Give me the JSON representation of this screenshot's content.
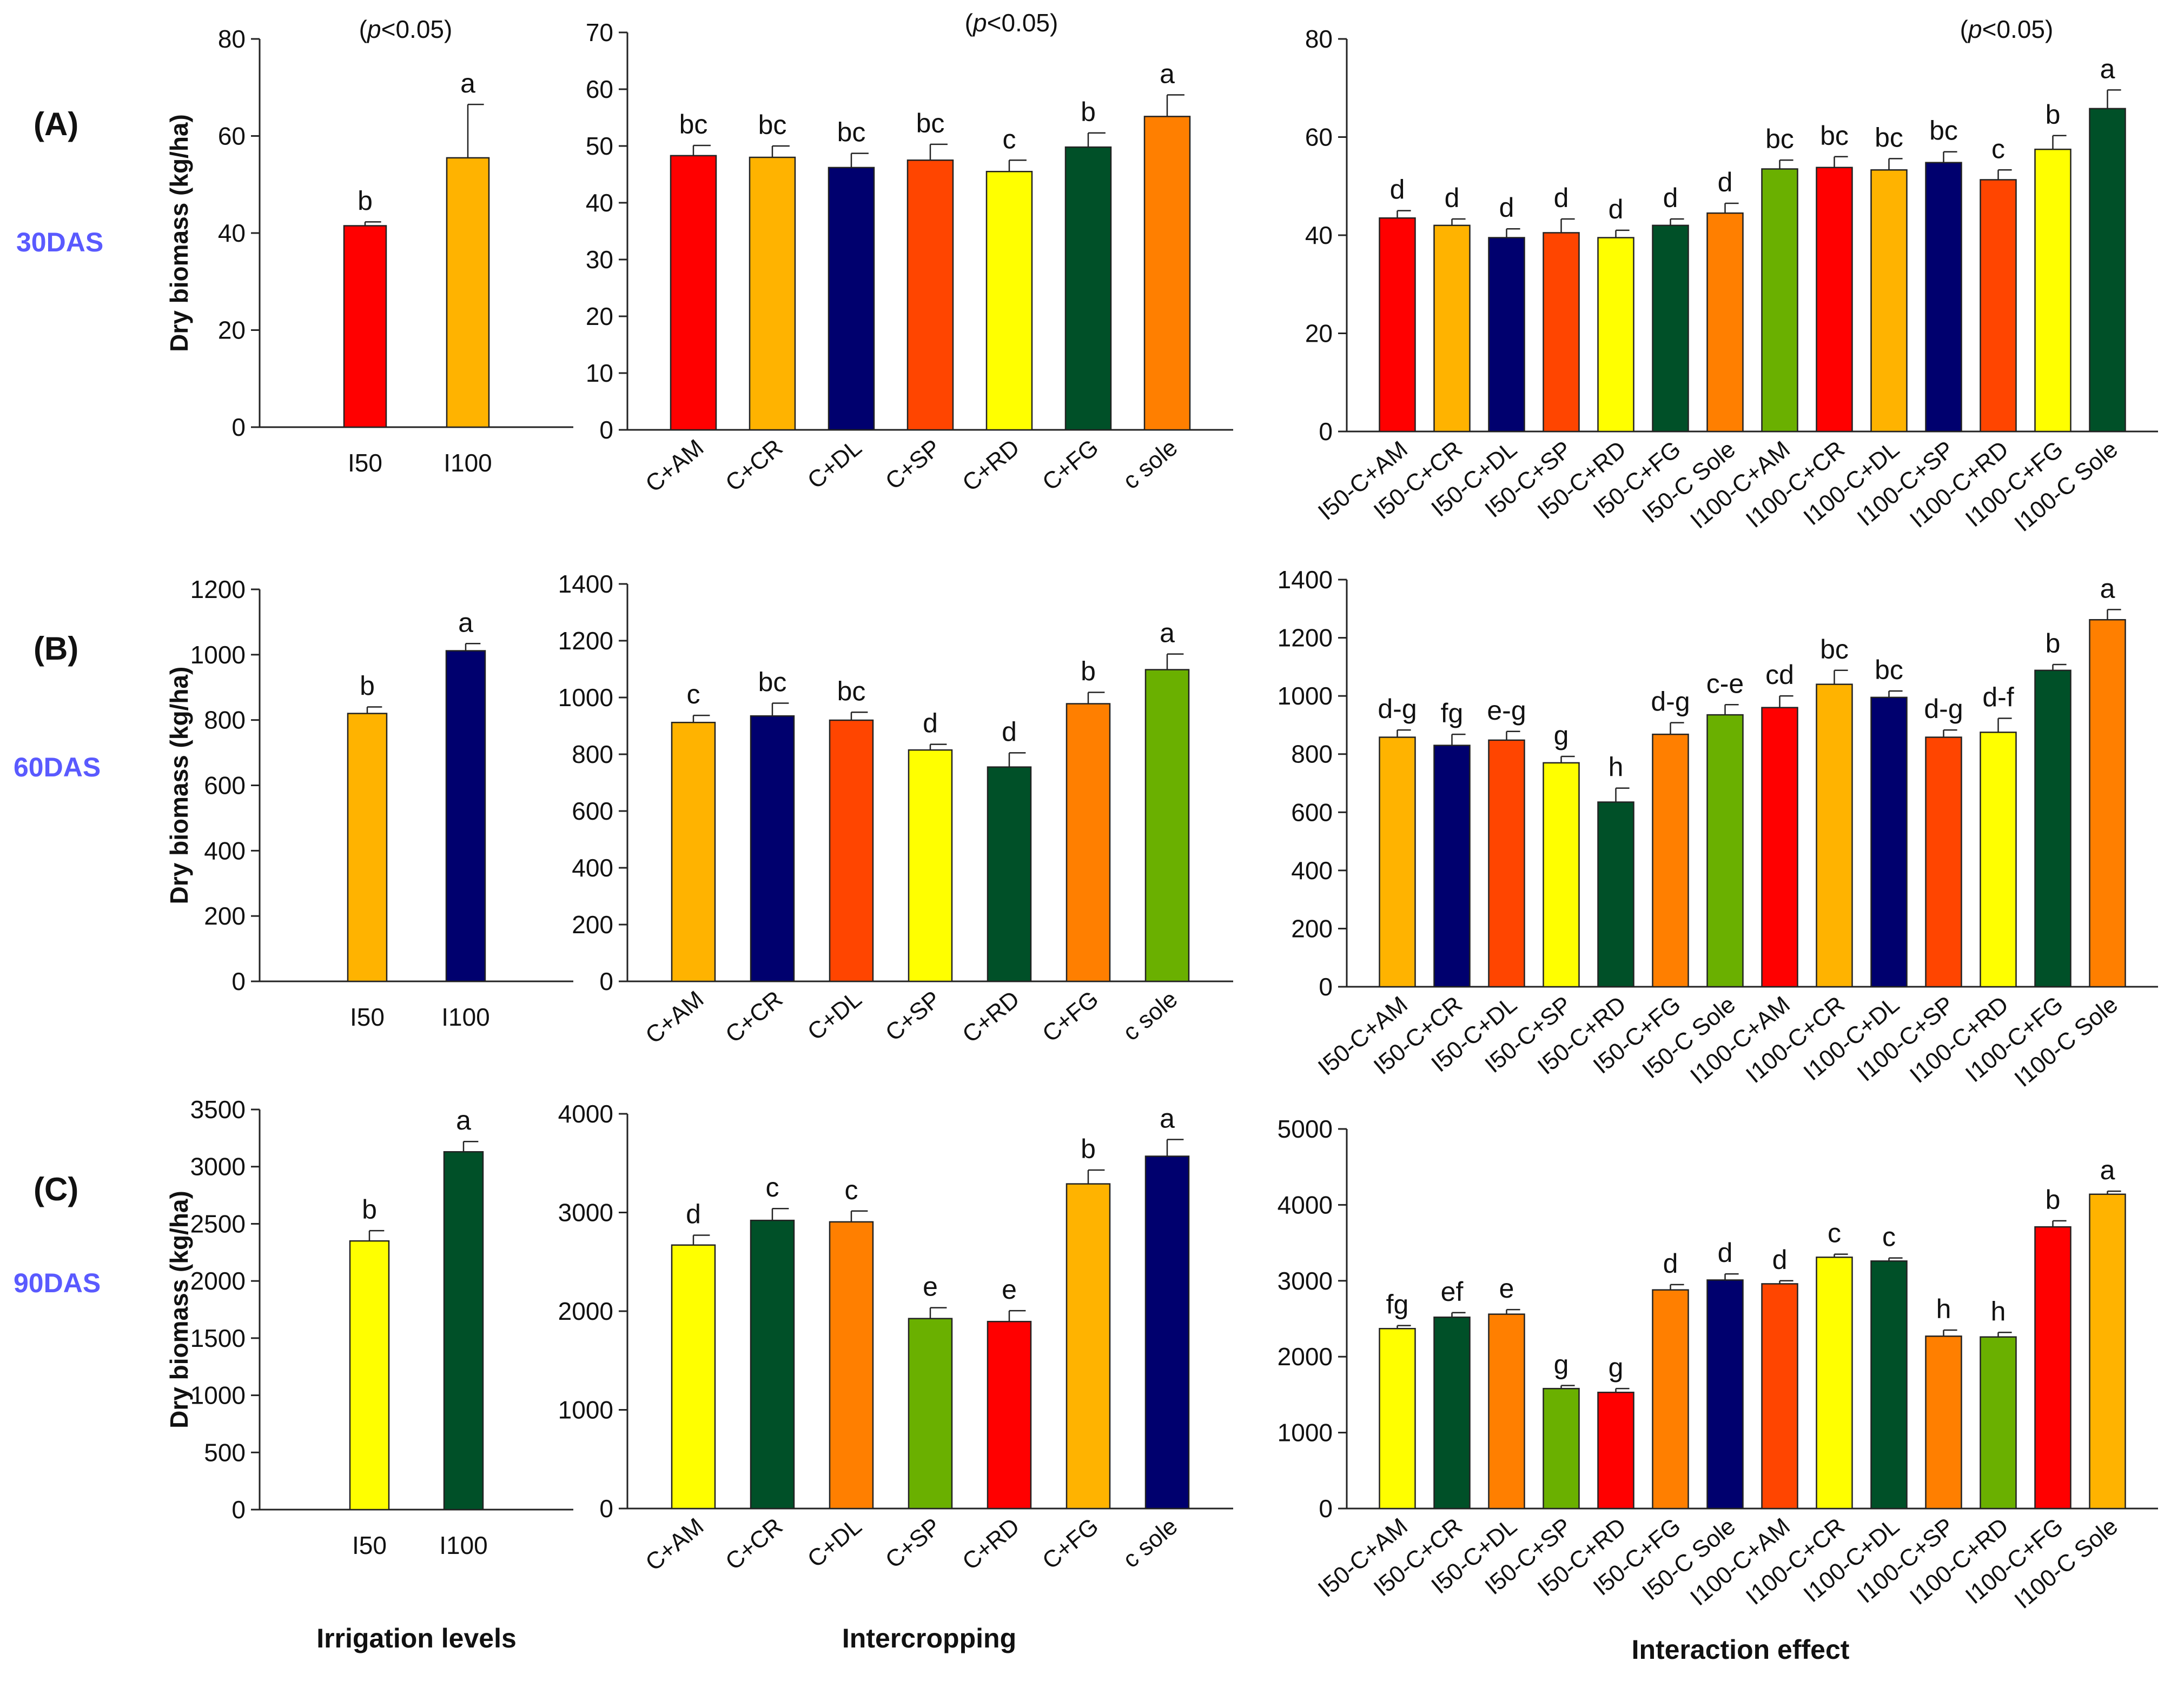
{
  "colors": {
    "red": "#ff0000",
    "gold": "#ffb300",
    "navy": "#00006e",
    "orangered": "#ff4500",
    "yellow": "#ffff00",
    "darkgreen": "#005028",
    "orange": "#ff7f00",
    "lime": "#6ab000"
  },
  "row_labels": [
    "(A)",
    "(B)",
    "(C)"
  ],
  "day_labels": [
    "30DAS",
    "60DAS",
    "90DAS"
  ],
  "column_labels": [
    "Irrigation levels",
    "Intercropping",
    "Interaction effect"
  ],
  "p_value_prefix": "(",
  "p_value_italic": "p",
  "p_value_suffix": "<0.05)",
  "chart_data": [
    {
      "type": "bar",
      "id": "A1",
      "ylabel": "Dry biomass (kg/ha)",
      "ylim": [
        0,
        80
      ],
      "yticks": [
        0,
        20,
        40,
        60,
        80
      ],
      "p_note": true,
      "categories": [
        "I50",
        "I100"
      ],
      "values": [
        41.5,
        55.5
      ],
      "errors": [
        0.8,
        11
      ],
      "letters": [
        "b",
        "a"
      ],
      "colors": [
        "red",
        "gold"
      ]
    },
    {
      "type": "bar",
      "id": "A2",
      "ylim": [
        0,
        70
      ],
      "yticks": [
        0,
        10,
        20,
        30,
        40,
        50,
        60,
        70
      ],
      "p_note": true,
      "categories": [
        "C+AM",
        "C+CR",
        "C+DL",
        "C+SP",
        "C+RD",
        "C+FG",
        "c sole"
      ],
      "values": [
        48.3,
        48,
        46.2,
        47.5,
        45.5,
        49.8,
        55.2
      ],
      "errors": [
        1.8,
        2,
        2.5,
        2.8,
        2,
        2.5,
        3.8
      ],
      "letters": [
        "bc",
        "bc",
        "bc",
        "bc",
        "c",
        "b",
        "a"
      ],
      "colors": [
        "red",
        "gold",
        "navy",
        "orangered",
        "yellow",
        "darkgreen",
        "orange"
      ]
    },
    {
      "type": "bar",
      "id": "A3",
      "ylim": [
        0,
        80
      ],
      "yticks": [
        0,
        20,
        40,
        60,
        80
      ],
      "p_note": true,
      "categories": [
        "I50-C+AM",
        "I50-C+CR",
        "I50-C+DL",
        "I50-C+SP",
        "I50-C+RD",
        "I50-C+FG",
        "I50-C Sole",
        "I100-C+AM",
        "I100-C+CR",
        "I100-C+DL",
        "I100-C+SP",
        "I100-C+RD",
        "I100-C+FG",
        "I100-C Sole"
      ],
      "values": [
        43.5,
        42,
        39.5,
        40.5,
        39.5,
        42,
        44.5,
        53.5,
        53.8,
        53.3,
        54.8,
        51.3,
        57.5,
        65.8
      ],
      "errors": [
        1.5,
        1.3,
        1.8,
        2.8,
        1.5,
        1.3,
        2,
        1.8,
        2.2,
        2.3,
        2.2,
        2,
        2.8,
        3.8
      ],
      "letters": [
        "d",
        "d",
        "d",
        "d",
        "d",
        "d",
        "d",
        "bc",
        "bc",
        "bc",
        "bc",
        "c",
        "b",
        "a"
      ],
      "colors": [
        "red",
        "gold",
        "navy",
        "orangered",
        "yellow",
        "darkgreen",
        "orange",
        "lime",
        "red",
        "gold",
        "navy",
        "orangered",
        "yellow",
        "darkgreen"
      ]
    },
    {
      "type": "bar",
      "id": "B1",
      "ylabel": "Dry biomass (kg/ha)",
      "ylim": [
        0,
        1200
      ],
      "yticks": [
        0,
        200,
        400,
        600,
        800,
        1000,
        1200
      ],
      "categories": [
        "I50",
        "I100"
      ],
      "values": [
        820,
        1012
      ],
      "errors": [
        20,
        22
      ],
      "letters": [
        "b",
        "a"
      ],
      "colors": [
        "gold",
        "navy"
      ]
    },
    {
      "type": "bar",
      "id": "B2",
      "ylim": [
        0,
        1400
      ],
      "yticks": [
        0,
        200,
        400,
        600,
        800,
        1000,
        1200,
        1400
      ],
      "categories": [
        "C+AM",
        "C+CR",
        "C+DL",
        "C+SP",
        "C+RD",
        "C+FG",
        "c sole"
      ],
      "values": [
        912,
        935,
        920,
        815,
        755,
        978,
        1098
      ],
      "errors": [
        25,
        45,
        28,
        20,
        50,
        40,
        55
      ],
      "letters": [
        "c",
        "bc",
        "bc",
        "d",
        "d",
        "b",
        "a"
      ],
      "colors": [
        "gold",
        "navy",
        "orangered",
        "yellow",
        "darkgreen",
        "orange",
        "lime"
      ]
    },
    {
      "type": "bar",
      "id": "B3",
      "ylim": [
        0,
        1400
      ],
      "yticks": [
        0,
        200,
        400,
        600,
        800,
        1000,
        1200,
        1400
      ],
      "categories": [
        "I50-C+AM",
        "I50-C+CR",
        "I50-C+DL",
        "I50-C+SP",
        "I50-C+RD",
        "I50-C+FG",
        "I50-C Sole",
        "I100-C+AM",
        "I100-C+CR",
        "I100-C+DL",
        "I100-C+SP",
        "I100-C+RD",
        "I100-C+FG",
        "I100-C Sole"
      ],
      "values": [
        858,
        830,
        848,
        770,
        635,
        868,
        935,
        960,
        1040,
        995,
        858,
        875,
        1088,
        1262
      ],
      "errors": [
        25,
        38,
        30,
        22,
        48,
        40,
        35,
        40,
        48,
        22,
        25,
        48,
        20,
        35
      ],
      "letters": [
        "d-g",
        "fg",
        "e-g",
        "g",
        "h",
        "d-g",
        "c-e",
        "cd",
        "bc",
        "bc",
        "d-g",
        "d-f",
        "b",
        "a"
      ],
      "colors": [
        "gold",
        "navy",
        "orangered",
        "yellow",
        "darkgreen",
        "orange",
        "lime",
        "red",
        "gold",
        "navy",
        "orangered",
        "yellow",
        "darkgreen",
        "orange"
      ]
    },
    {
      "type": "bar",
      "id": "C1",
      "ylabel": "Dry biomass (kg/ha)",
      "ylim": [
        0,
        3500
      ],
      "yticks": [
        0,
        500,
        1000,
        1500,
        2000,
        2500,
        3000,
        3500
      ],
      "categories": [
        "I50",
        "I100"
      ],
      "values": [
        2350,
        3130
      ],
      "errors": [
        90,
        90
      ],
      "letters": [
        "b",
        "a"
      ],
      "colors": [
        "yellow",
        "darkgreen"
      ]
    },
    {
      "type": "bar",
      "id": "C2",
      "ylim": [
        0,
        4000
      ],
      "yticks": [
        0,
        1000,
        2000,
        3000,
        4000
      ],
      "categories": [
        "C+AM",
        "C+CR",
        "C+DL",
        "C+SP",
        "C+RD",
        "C+FG",
        "c sole"
      ],
      "values": [
        2670,
        2920,
        2905,
        1925,
        1895,
        3290,
        3570
      ],
      "errors": [
        100,
        120,
        110,
        110,
        110,
        140,
        170
      ],
      "letters": [
        "d",
        "c",
        "c",
        "e",
        "e",
        "b",
        "a"
      ],
      "colors": [
        "yellow",
        "darkgreen",
        "orange",
        "lime",
        "red",
        "gold",
        "navy"
      ]
    },
    {
      "type": "bar",
      "id": "C3",
      "ylim": [
        0,
        5000
      ],
      "yticks": [
        0,
        1000,
        2000,
        3000,
        4000,
        5000
      ],
      "categories": [
        "I50-C+AM",
        "I50-C+CR",
        "I50-C+DL",
        "I50-C+SP",
        "I50-C+RD",
        "I50-C+FG",
        "I50-C Sole",
        "I100-C+AM",
        "I100-C+CR",
        "I100-C+DL",
        "I100-C+SP",
        "I100-C+RD",
        "I100-C+FG",
        "I100-C Sole"
      ],
      "values": [
        2370,
        2520,
        2560,
        1580,
        1530,
        2880,
        3010,
        2960,
        3310,
        3260,
        2270,
        2260,
        3710,
        4140
      ],
      "errors": [
        40,
        60,
        60,
        40,
        50,
        70,
        80,
        40,
        40,
        40,
        80,
        60,
        80,
        40
      ],
      "letters": [
        "fg",
        "ef",
        "e",
        "g",
        "g",
        "d",
        "d",
        "d",
        "c",
        "c",
        "h",
        "h",
        "b",
        "a"
      ],
      "colors": [
        "yellow",
        "darkgreen",
        "orange",
        "lime",
        "red",
        "orange",
        "navy",
        "orangered",
        "yellow",
        "darkgreen",
        "orange",
        "lime",
        "red",
        "gold"
      ]
    }
  ]
}
